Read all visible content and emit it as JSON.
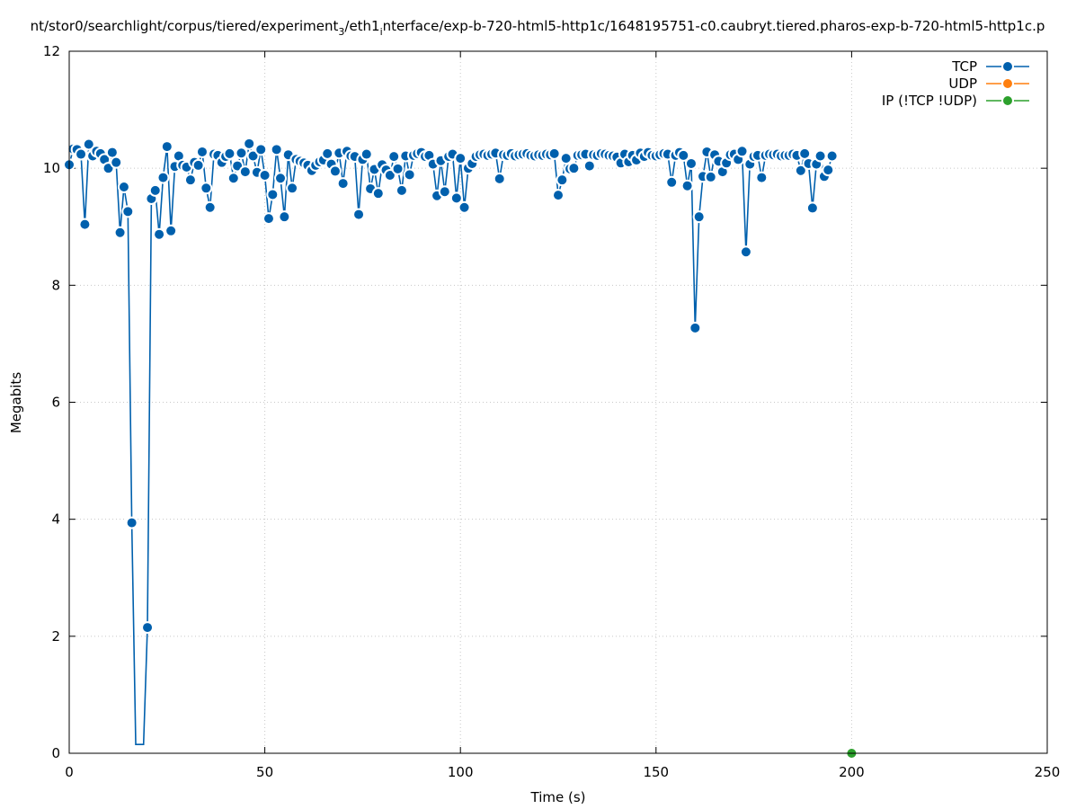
{
  "chart_data": {
    "type": "line",
    "title_prefix": "nt/stor0/searchlight/corpus/tiered/experiment",
    "title_sub": "3",
    "title_mid": "/eth1",
    "title_sub2": "i",
    "title_suffix": "nterface/exp-b-720-html5-http1c/1648195751-c0.caubryt.tiered.pharos-exp-b-720-html5-http1c.p",
    "xlabel": "Time (s)",
    "ylabel": "Megabits",
    "xlim": [
      0,
      250
    ],
    "ylim": [
      0,
      12
    ],
    "x_ticks": [
      0,
      50,
      100,
      150,
      200,
      250
    ],
    "y_ticks": [
      0,
      2,
      4,
      6,
      8,
      10,
      12
    ],
    "grid": true,
    "legend_position": "top-right",
    "series": [
      {
        "name": "TCP",
        "color": "#0060ad",
        "points": [
          [
            0,
            10.06
          ],
          [
            1,
            10.33
          ],
          [
            2,
            10.32
          ],
          [
            3,
            10.24
          ],
          [
            4,
            9.04
          ],
          [
            5,
            10.41
          ],
          [
            6,
            10.21
          ],
          [
            7,
            10.29
          ],
          [
            8,
            10.25
          ],
          [
            9,
            10.15
          ],
          [
            10,
            10.0
          ],
          [
            11,
            10.27
          ],
          [
            12,
            10.1
          ],
          [
            13,
            8.9
          ],
          [
            14,
            9.68
          ],
          [
            15,
            9.26
          ],
          [
            16,
            3.94
          ],
          [
            17,
            0.15
          ],
          [
            19,
            0.15
          ],
          [
            20,
            2.15
          ],
          [
            21,
            9.48
          ],
          [
            22,
            9.62
          ],
          [
            23,
            8.87
          ],
          [
            24,
            9.84
          ],
          [
            25,
            10.37
          ],
          [
            26,
            8.93
          ],
          [
            27,
            10.03
          ],
          [
            28,
            10.21
          ],
          [
            29,
            10.05
          ],
          [
            30,
            10.02
          ],
          [
            31,
            9.8
          ],
          [
            32,
            10.1
          ],
          [
            33,
            10.05
          ],
          [
            34,
            10.28
          ],
          [
            35,
            9.66
          ],
          [
            36,
            9.33
          ],
          [
            37,
            10.24
          ],
          [
            38,
            10.22
          ],
          [
            39,
            10.1
          ],
          [
            40,
            10.2
          ],
          [
            41,
            10.25
          ],
          [
            42,
            9.83
          ],
          [
            43,
            10.04
          ],
          [
            44,
            10.26
          ],
          [
            45,
            9.94
          ],
          [
            46,
            10.42
          ],
          [
            47,
            10.21
          ],
          [
            48,
            9.93
          ],
          [
            49,
            10.32
          ],
          [
            50,
            9.88
          ],
          [
            51,
            9.14
          ],
          [
            52,
            9.55
          ],
          [
            53,
            10.32
          ],
          [
            54,
            9.83
          ],
          [
            55,
            9.17
          ],
          [
            56,
            10.23
          ],
          [
            57,
            9.66
          ],
          [
            58,
            10.15
          ],
          [
            59,
            10.12
          ],
          [
            60,
            10.09
          ],
          [
            61,
            10.05
          ],
          [
            62,
            9.96
          ],
          [
            63,
            10.05
          ],
          [
            64,
            10.11
          ],
          [
            65,
            10.14
          ],
          [
            66,
            10.25
          ],
          [
            67,
            10.07
          ],
          [
            68,
            9.95
          ],
          [
            69,
            10.26
          ],
          [
            70,
            9.74
          ],
          [
            71,
            10.29
          ],
          [
            72,
            10.21
          ],
          [
            73,
            10.2
          ],
          [
            74,
            9.21
          ],
          [
            75,
            10.15
          ],
          [
            76,
            10.24
          ],
          [
            77,
            9.65
          ],
          [
            78,
            9.98
          ],
          [
            79,
            9.57
          ],
          [
            80,
            10.06
          ],
          [
            81,
            9.97
          ],
          [
            82,
            9.88
          ],
          [
            83,
            10.2
          ],
          [
            84,
            9.99
          ],
          [
            85,
            9.62
          ],
          [
            86,
            10.21
          ],
          [
            87,
            9.89
          ],
          [
            88,
            10.22
          ],
          [
            89,
            10.25
          ],
          [
            90,
            10.27
          ],
          [
            91,
            10.2
          ],
          [
            92,
            10.22
          ],
          [
            93,
            10.07
          ],
          [
            94,
            9.53
          ],
          [
            95,
            10.13
          ],
          [
            96,
            9.6
          ],
          [
            97,
            10.2
          ],
          [
            98,
            10.24
          ],
          [
            99,
            9.49
          ],
          [
            100,
            10.17
          ],
          [
            101,
            9.33
          ],
          [
            102,
            10.0
          ],
          [
            103,
            10.08
          ],
          [
            104,
            10.2
          ],
          [
            105,
            10.23
          ],
          [
            106,
            10.24
          ],
          [
            107,
            10.22
          ],
          [
            108,
            10.24
          ],
          [
            109,
            10.26
          ],
          [
            110,
            9.82
          ],
          [
            111,
            10.23
          ],
          [
            112,
            10.22
          ],
          [
            113,
            10.25
          ],
          [
            114,
            10.21
          ],
          [
            115,
            10.23
          ],
          [
            116,
            10.24
          ],
          [
            117,
            10.25
          ],
          [
            118,
            10.22
          ],
          [
            119,
            10.21
          ],
          [
            120,
            10.23
          ],
          [
            121,
            10.22
          ],
          [
            122,
            10.24
          ],
          [
            123,
            10.23
          ],
          [
            124,
            10.25
          ],
          [
            125,
            9.54
          ],
          [
            126,
            9.8
          ],
          [
            127,
            10.17
          ],
          [
            128,
            9.99
          ],
          [
            129,
            10.0
          ],
          [
            130,
            10.22
          ],
          [
            131,
            10.23
          ],
          [
            132,
            10.24
          ],
          [
            133,
            10.04
          ],
          [
            134,
            10.23
          ],
          [
            135,
            10.22
          ],
          [
            136,
            10.25
          ],
          [
            137,
            10.24
          ],
          [
            138,
            10.22
          ],
          [
            139,
            10.21
          ],
          [
            140,
            10.19
          ],
          [
            141,
            10.09
          ],
          [
            142,
            10.24
          ],
          [
            143,
            10.11
          ],
          [
            144,
            10.22
          ],
          [
            145,
            10.14
          ],
          [
            146,
            10.26
          ],
          [
            147,
            10.2
          ],
          [
            148,
            10.27
          ],
          [
            149,
            10.22
          ],
          [
            150,
            10.21
          ],
          [
            151,
            10.23
          ],
          [
            152,
            10.25
          ],
          [
            153,
            10.24
          ],
          [
            154,
            9.76
          ],
          [
            155,
            10.22
          ],
          [
            156,
            10.27
          ],
          [
            157,
            10.22
          ],
          [
            158,
            9.7
          ],
          [
            159,
            10.08
          ],
          [
            160,
            7.27
          ],
          [
            161,
            9.17
          ],
          [
            162,
            9.86
          ],
          [
            163,
            10.28
          ],
          [
            164,
            9.85
          ],
          [
            165,
            10.23
          ],
          [
            166,
            10.12
          ],
          [
            167,
            9.94
          ],
          [
            168,
            10.09
          ],
          [
            169,
            10.23
          ],
          [
            170,
            10.24
          ],
          [
            171,
            10.15
          ],
          [
            172,
            10.29
          ],
          [
            173,
            8.57
          ],
          [
            174,
            10.07
          ],
          [
            175,
            10.2
          ],
          [
            176,
            10.22
          ],
          [
            177,
            9.84
          ],
          [
            178,
            10.22
          ],
          [
            179,
            10.24
          ],
          [
            180,
            10.23
          ],
          [
            181,
            10.24
          ],
          [
            182,
            10.21
          ],
          [
            183,
            10.22
          ],
          [
            184,
            10.22
          ],
          [
            185,
            10.24
          ],
          [
            186,
            10.22
          ],
          [
            187,
            9.96
          ],
          [
            188,
            10.25
          ],
          [
            189,
            10.08
          ],
          [
            190,
            9.32
          ],
          [
            191,
            10.07
          ],
          [
            192,
            10.21
          ],
          [
            193,
            9.86
          ],
          [
            194,
            9.97
          ],
          [
            195,
            10.21
          ]
        ]
      },
      {
        "name": "UDP",
        "color": "#ff7f0e",
        "points": []
      },
      {
        "name": "IP (!TCP  !UDP)",
        "color": "#2ca02c",
        "points": [
          [
            200,
            0
          ]
        ]
      }
    ]
  }
}
